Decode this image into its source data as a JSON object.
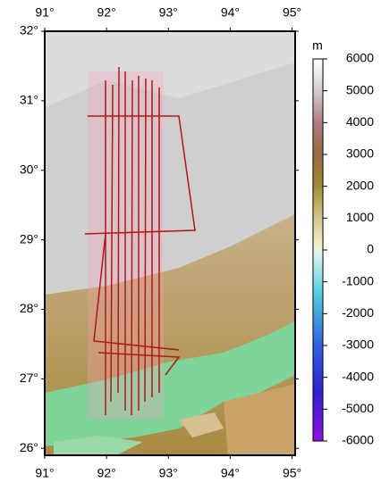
{
  "map": {
    "xlim": [
      91,
      95.05
    ],
    "ylim": [
      25.9,
      32
    ],
    "xticks": [
      {
        "value": 91,
        "label": "91°"
      },
      {
        "value": 92,
        "label": "92°"
      },
      {
        "value": 93,
        "label": "93°"
      },
      {
        "value": 94,
        "label": "94°"
      },
      {
        "value": 95,
        "label": "95°"
      }
    ],
    "yticks": [
      {
        "value": 26,
        "label": "26°"
      },
      {
        "value": 27,
        "label": "27°"
      },
      {
        "value": 28,
        "label": "28°"
      },
      {
        "value": 29,
        "label": "29°"
      },
      {
        "value": 30,
        "label": "30°"
      },
      {
        "value": 31,
        "label": "31°"
      },
      {
        "value": 32,
        "label": "32°"
      }
    ]
  },
  "colorbar": {
    "unit": "m",
    "range": [
      -6000,
      6000
    ],
    "ticks": [
      6000,
      5000,
      4000,
      3000,
      2000,
      1000,
      0,
      -1000,
      -2000,
      -3000,
      -4000,
      -5000,
      -6000
    ]
  }
}
